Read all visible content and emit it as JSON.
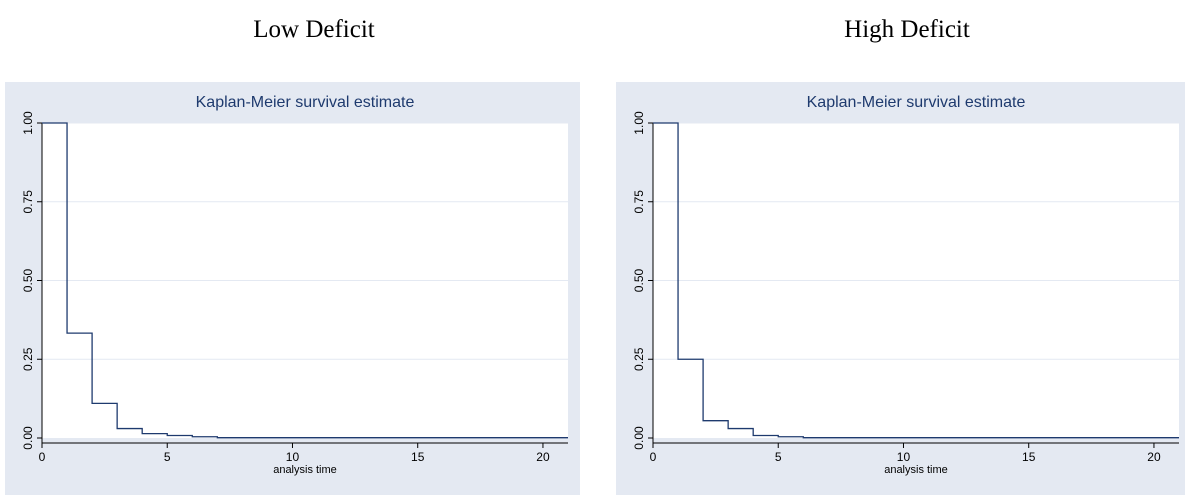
{
  "headings": [
    "Low Deficit",
    "High Deficit"
  ],
  "colors": {
    "panel_background": "#e4e9f2",
    "plot_background": "#ffffff",
    "gridline": "#e4e9f2",
    "survival_line": "#1e3a6e",
    "title_text": "#1e3a6e"
  },
  "chart_data": [
    {
      "type": "line",
      "step": true,
      "title": "Kaplan-Meier survival estimate",
      "xlabel": "analysis time",
      "ylabel": "",
      "xlim": [
        0,
        21
      ],
      "ylim": [
        0,
        1
      ],
      "xticks": [
        0,
        5,
        10,
        15,
        20
      ],
      "xtick_labels": [
        "0",
        "5",
        "10",
        "15",
        "20"
      ],
      "yticks": [
        0,
        0.25,
        0.5,
        0.75,
        1
      ],
      "ytick_labels": [
        "0.00",
        "0.25",
        "0.50",
        "0.75",
        "1.00"
      ],
      "grid": true,
      "series": [
        {
          "x": [
            0,
            1,
            2,
            3,
            4,
            5,
            6,
            7,
            21
          ],
          "y": [
            1.0,
            0.333,
            0.11,
            0.03,
            0.014,
            0.008,
            0.004,
            0.001,
            0.001
          ]
        }
      ]
    },
    {
      "type": "line",
      "step": true,
      "title": "Kaplan-Meier survival estimate",
      "xlabel": "analysis time",
      "ylabel": "",
      "xlim": [
        0,
        21
      ],
      "ylim": [
        0,
        1
      ],
      "xticks": [
        0,
        5,
        10,
        15,
        20
      ],
      "xtick_labels": [
        "0",
        "5",
        "10",
        "15",
        "20"
      ],
      "yticks": [
        0,
        0.25,
        0.5,
        0.75,
        1
      ],
      "ytick_labels": [
        "0.00",
        "0.25",
        "0.50",
        "0.75",
        "1.00"
      ],
      "grid": true,
      "series": [
        {
          "x": [
            0,
            1,
            2,
            3,
            4,
            5,
            6,
            21
          ],
          "y": [
            1.0,
            0.25,
            0.055,
            0.03,
            0.008,
            0.004,
            0.001,
            0.001
          ]
        }
      ]
    }
  ]
}
